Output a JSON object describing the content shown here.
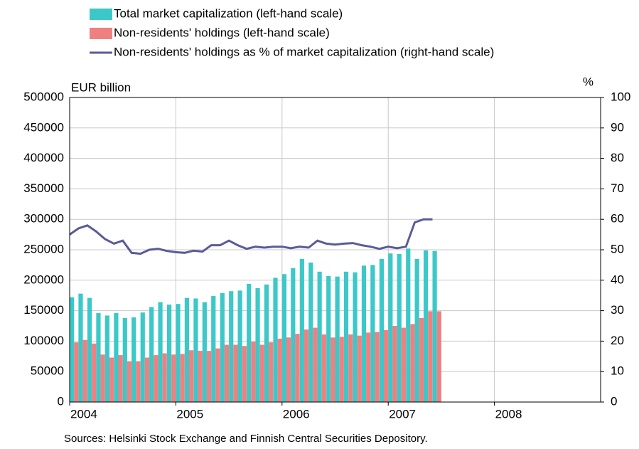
{
  "chart_data": {
    "type": "bar-line",
    "y_label": "EUR billion",
    "y2_label": "%",
    "source": "Sources: Helsinki Stock Exchange and Finnish Central Securities Depository.",
    "xlim": [
      2004,
      2009
    ],
    "xticks": [
      2004,
      2005,
      2006,
      2007,
      2008
    ],
    "ylim": [
      0,
      500000
    ],
    "yticks": [
      0,
      50000,
      100000,
      150000,
      200000,
      250000,
      300000,
      350000,
      400000,
      450000,
      500000
    ],
    "y2lim": [
      0,
      100
    ],
    "y2ticks": [
      0,
      10,
      20,
      30,
      40,
      50,
      60,
      70,
      80,
      90,
      100
    ],
    "grid": true,
    "x": [
      2004,
      2004.083,
      2004.167,
      2004.25,
      2004.333,
      2004.417,
      2004.5,
      2004.583,
      2004.667,
      2004.75,
      2004.833,
      2004.917,
      2005,
      2005.083,
      2005.167,
      2005.25,
      2005.333,
      2005.417,
      2005.5,
      2005.583,
      2005.667,
      2005.75,
      2005.833,
      2005.917,
      2006,
      2006.083,
      2006.167,
      2006.25,
      2006.333,
      2006.417,
      2006.5,
      2006.583,
      2006.667,
      2006.75,
      2006.833,
      2006.917,
      2007,
      2007.083,
      2007.167,
      2007.25,
      2007.333,
      2007.417
    ],
    "series": [
      {
        "name": "Total market capitalization (left-hand scale)",
        "color": "#3cc8c8",
        "kind": "bar",
        "values": [
          172000,
          178000,
          171000,
          146000,
          142000,
          146000,
          138000,
          139000,
          147000,
          156000,
          164000,
          160000,
          161000,
          171000,
          170000,
          164000,
          174000,
          179000,
          182000,
          183000,
          194000,
          187000,
          193000,
          204000,
          210000,
          220000,
          235000,
          229000,
          214000,
          207000,
          206000,
          214000,
          213000,
          224000,
          225000,
          235000,
          244000,
          243000,
          252000,
          235000,
          249000,
          248000
        ]
      },
      {
        "name": "Non-residents' holdings (left-hand scale)",
        "color": "#f08080",
        "kind": "bar",
        "values": [
          98000,
          102000,
          96000,
          78000,
          73000,
          77000,
          67000,
          67000,
          73000,
          77000,
          80000,
          78000,
          79000,
          85000,
          84000,
          84000,
          88000,
          94000,
          94000,
          92000,
          99000,
          94000,
          98000,
          104000,
          106000,
          112000,
          119000,
          122000,
          111000,
          106000,
          107000,
          111000,
          109000,
          114000,
          115000,
          118000,
          125000,
          122000,
          128000,
          138000,
          149000,
          149000
        ]
      },
      {
        "name": "Non-residents' holdings as % of market capitalization (right-hand scale)",
        "color": "#5b5b99",
        "kind": "line",
        "axis": "y2",
        "values": [
          55,
          57,
          58,
          56,
          53.5,
          52,
          53,
          49,
          48.7,
          50,
          50.3,
          49.6,
          49.2,
          49,
          49.7,
          49.4,
          51.5,
          51.5,
          53,
          51.5,
          50.3,
          51,
          50.7,
          51,
          51,
          50.5,
          51,
          50.7,
          53,
          52,
          51.7,
          52,
          52.2,
          51.5,
          51,
          50.3,
          51,
          50.5,
          51,
          59,
          60,
          60
        ]
      }
    ]
  }
}
